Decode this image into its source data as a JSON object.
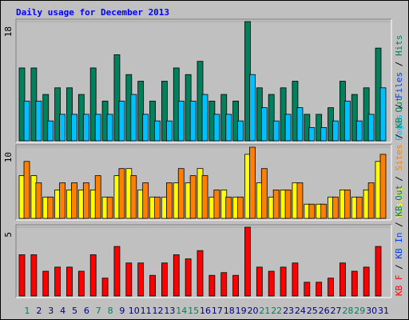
{
  "chart_data": {
    "type": "bar",
    "title": "Daily usage for December 2013",
    "categories": [
      "1",
      "2",
      "3",
      "4",
      "5",
      "6",
      "7",
      "8",
      "9",
      "10",
      "11",
      "12",
      "13",
      "14",
      "15",
      "16",
      "17",
      "18",
      "19",
      "20",
      "21",
      "22",
      "23",
      "24",
      "25",
      "26",
      "27",
      "28",
      "29",
      "30",
      "31"
    ],
    "category_colors": [
      "#00805c",
      "#000080",
      "#000080",
      "#000080",
      "#000080",
      "#000080",
      "#00805c",
      "#00805c",
      "#000080",
      "#000080",
      "#000080",
      "#000080",
      "#000080",
      "#00805c",
      "#00805c",
      "#000080",
      "#000080",
      "#000080",
      "#000080",
      "#000080",
      "#00805c",
      "#00805c",
      "#000080",
      "#000080",
      "#000080",
      "#000080",
      "#000080",
      "#00805c",
      "#00805c",
      "#000080",
      "#000080"
    ],
    "legend_separator": " / ",
    "panels": [
      {
        "ylim": [
          0,
          18
        ],
        "yticks": [
          18
        ],
        "legend": [
          {
            "name": "Pages",
            "color": "#00c0ff"
          },
          {
            "name": "Files",
            "color": "#0040ff"
          },
          {
            "name": "Hits",
            "color": "#00805c"
          }
        ],
        "series": [
          {
            "name": "Hits",
            "color": "#00805c",
            "values": [
              11,
              11,
              7,
              8,
              8,
              7,
              11,
              6,
              13,
              10,
              9,
              6,
              9,
              11,
              10,
              12,
              6,
              7,
              6,
              18,
              8,
              7,
              8,
              9,
              4,
              4,
              5,
              9,
              7,
              8,
              14
            ]
          },
          {
            "name": "Pages",
            "color": "#00c0ff",
            "values": [
              6,
              6,
              3,
              4,
              4,
              4,
              4,
              4,
              6,
              7,
              4,
              3,
              3,
              6,
              6,
              7,
              4,
              4,
              3,
              10,
              5,
              3,
              4,
              5,
              2,
              2,
              3,
              6,
              3,
              4,
              8
            ]
          }
        ]
      },
      {
        "ylim": [
          0,
          10
        ],
        "yticks": [
          10
        ],
        "legend": [
          {
            "name": "Visits",
            "color": "#ffff00"
          },
          {
            "name": "Sites",
            "color": "#ff8000"
          },
          {
            "name": "KB Out",
            "color": "#00805c"
          }
        ],
        "series": [
          {
            "name": "Visits",
            "color": "#ffff00",
            "values": [
              6,
              6,
              3,
              4,
              4,
              4,
              4,
              3,
              6,
              7,
              4,
              3,
              3,
              5,
              5,
              7,
              3,
              4,
              3,
              9,
              5,
              3,
              4,
              5,
              2,
              2,
              3,
              4,
              3,
              4,
              8
            ]
          },
          {
            "name": "Sites",
            "color": "#ff8000",
            "values": [
              8,
              5,
              3,
              5,
              5,
              5,
              6,
              3,
              7,
              6,
              5,
              3,
              5,
              7,
              6,
              6,
              4,
              3,
              3,
              10,
              7,
              4,
              4,
              5,
              2,
              2,
              3,
              4,
              3,
              5,
              9
            ]
          }
        ]
      },
      {
        "ylim": [
          0,
          5
        ],
        "yticks": [
          5
        ],
        "legend": [
          {
            "name": "KB F",
            "color": "#ff0000"
          },
          {
            "name": "KB In",
            "color": "#0040ff"
          },
          {
            "name": "KB Out",
            "color": "#00805c"
          }
        ],
        "series": [
          {
            "name": "KB F",
            "color": "#ff0000",
            "values": [
              3,
              3,
              1.8,
              2.1,
              2.1,
              1.8,
              3,
              1.3,
              3.6,
              2.4,
              2.4,
              1.5,
              2.4,
              3,
              2.7,
              3.3,
              1.5,
              1.7,
              1.5,
              5,
              2.1,
              1.8,
              2.1,
              2.4,
              1,
              1,
              1.3,
              2.4,
              1.8,
              2.1,
              3.6
            ]
          }
        ]
      }
    ]
  }
}
